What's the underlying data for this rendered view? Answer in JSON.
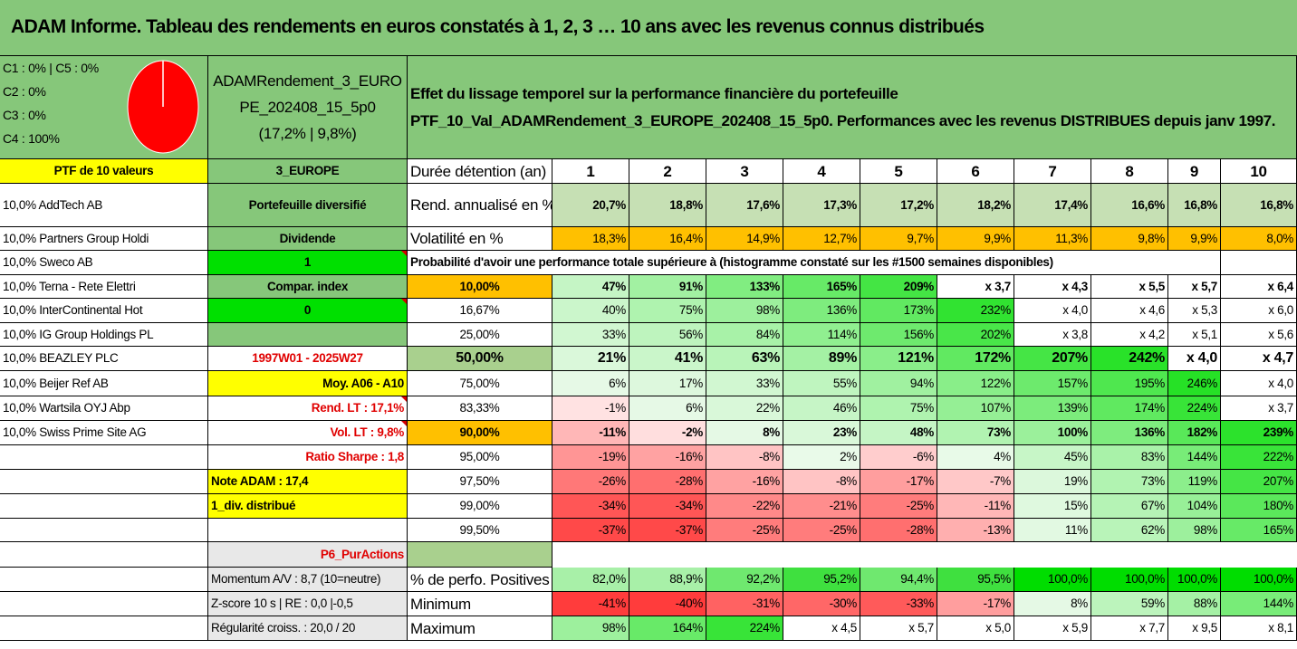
{
  "title": "ADAM Informe. Tableau des rendements en euros constatés à 1, 2, 3 … 10 ans avec les revenus connus distribués",
  "classes": [
    "C1 : 0% | C5 : 0%",
    "C2 : 0%",
    "C3 : 0%",
    "C4 : 100%"
  ],
  "fund": {
    "line1": "ADAMRendement_3_EURO",
    "line2": "PE_202408_15_5p0",
    "line3": "(17,2% | 9,8%)"
  },
  "effect": {
    "line1": "Effet du lissage temporel sur la performance financière du portefeuille",
    "line2": "PTF_10_Val_ADAMRendement_3_EUROPE_202408_15_5p0. Performances avec les revenus DISTRIBUES depuis janv 1997."
  },
  "ptf_label": "PTF de 10 valeurs",
  "zone": "3_EUROPE",
  "holdings": [
    "10,0% AddTech AB",
    "10,0% Partners Group Holdi",
    "10,0% Sweco AB",
    "10,0% Terna - Rete Elettri",
    "10,0% InterContinental Hot",
    "10,0% IG Group Holdings PL",
    "10,0% BEAZLEY PLC",
    "10,0% Beijer Ref AB",
    "10,0% Wartsila OYJ Abp",
    "10,0% Swiss Prime Site AG"
  ],
  "side_labels": {
    "diversified": "Portefeuille diversifié",
    "dividend_label": "Dividende",
    "dividend_value": "1",
    "compar_label": "Compar. index",
    "compar_value": "0",
    "period": "1997W01 - 2025W27",
    "moy": "Moy. A06 - A10",
    "rend_lt": "Rend. LT : 17,1%",
    "vol_lt": "Vol. LT : 9,8%",
    "sharpe": "Ratio Sharpe : 1,8",
    "note": "Note ADAM : 17,4",
    "div": "1_div. distribué",
    "p6": "P6_PurActions",
    "momentum": "Momentum A/V : 8,7 (10=neutre)",
    "zscore": "Z-score 10 s | RE : 0,0 |-0,5",
    "regularite": "Régularité croiss. : 20,0 / 20"
  },
  "years_label": "Durée détention (an)",
  "years": [
    "1",
    "2",
    "3",
    "4",
    "5",
    "6",
    "7",
    "8",
    "9",
    "10"
  ],
  "rend_label": "Rend. annualisé en %",
  "rend": [
    "20,7%",
    "18,8%",
    "17,6%",
    "17,3%",
    "17,2%",
    "18,2%",
    "17,4%",
    "16,6%",
    "16,8%",
    "16,8%"
  ],
  "vol_label": "Volatilité en %",
  "vol": [
    "18,3%",
    "16,4%",
    "14,9%",
    "12,7%",
    "9,7%",
    "9,9%",
    "11,3%",
    "9,8%",
    "9,9%",
    "8,0%"
  ],
  "prob_title": "Probabilité d'avoir une performance totale supérieure à (histogramme constaté sur les #1500 semaines disponibles)",
  "prob_rows": [
    {
      "p": "10,00%",
      "v": [
        "47%",
        "91%",
        "133%",
        "165%",
        "209%",
        "x 3,7",
        "x 4,3",
        "x 5,5",
        "x 5,7",
        "x 6,4"
      ]
    },
    {
      "p": "16,67%",
      "v": [
        "40%",
        "75%",
        "98%",
        "136%",
        "173%",
        "232%",
        "x 4,0",
        "x 4,6",
        "x 5,3",
        "x 6,0"
      ]
    },
    {
      "p": "25,00%",
      "v": [
        "33%",
        "56%",
        "84%",
        "114%",
        "156%",
        "202%",
        "x 3,8",
        "x 4,2",
        "x 5,1",
        "x 5,6"
      ]
    },
    {
      "p": "50,00%",
      "v": [
        "21%",
        "41%",
        "63%",
        "89%",
        "121%",
        "172%",
        "207%",
        "242%",
        "x 4,0",
        "x 4,7"
      ]
    },
    {
      "p": "75,00%",
      "v": [
        "6%",
        "17%",
        "33%",
        "55%",
        "94%",
        "122%",
        "157%",
        "195%",
        "246%",
        "x 4,0"
      ]
    },
    {
      "p": "83,33%",
      "v": [
        "-1%",
        "6%",
        "22%",
        "46%",
        "75%",
        "107%",
        "139%",
        "174%",
        "224%",
        "x 3,7"
      ]
    },
    {
      "p": "90,00%",
      "v": [
        "-11%",
        "-2%",
        "8%",
        "23%",
        "48%",
        "73%",
        "100%",
        "136%",
        "182%",
        "239%"
      ]
    },
    {
      "p": "95,00%",
      "v": [
        "-19%",
        "-16%",
        "-8%",
        "2%",
        "-6%",
        "4%",
        "45%",
        "83%",
        "144%",
        "222%"
      ]
    },
    {
      "p": "97,50%",
      "v": [
        "-26%",
        "-28%",
        "-16%",
        "-8%",
        "-17%",
        "-7%",
        "19%",
        "73%",
        "119%",
        "207%"
      ]
    },
    {
      "p": "99,00%",
      "v": [
        "-34%",
        "-34%",
        "-22%",
        "-21%",
        "-25%",
        "-11%",
        "15%",
        "67%",
        "104%",
        "180%"
      ]
    },
    {
      "p": "99,50%",
      "v": [
        "-37%",
        "-37%",
        "-25%",
        "-25%",
        "-28%",
        "-13%",
        "11%",
        "62%",
        "98%",
        "165%"
      ]
    }
  ],
  "pos_label": "% de perfo. Positives",
  "pos": [
    "82,0%",
    "88,9%",
    "92,2%",
    "95,2%",
    "94,4%",
    "95,5%",
    "100,0%",
    "100,0%",
    "100,0%",
    "100,0%"
  ],
  "min_label": "Minimum",
  "min": [
    "-41%",
    "-40%",
    "-31%",
    "-30%",
    "-33%",
    "-17%",
    "8%",
    "59%",
    "88%",
    "144%"
  ],
  "max_label": "Maximum",
  "max": [
    "98%",
    "164%",
    "224%",
    "x 4,5",
    "x 5,7",
    "x 5,0",
    "x 5,9",
    "x 7,7",
    "x 9,5",
    "x 8,1"
  ],
  "colors": {
    "header_green": "#86c77a",
    "yellow": "#ffff00",
    "orange": "#ffc000",
    "bright_green": "#00e000",
    "pale_green": "#c6e0b4",
    "mid_green": "#a9d08e",
    "red_text": "#e00000"
  },
  "pie": {
    "segments": [
      {
        "label": "C4",
        "value": 100,
        "color": "#ff0000"
      }
    ]
  }
}
